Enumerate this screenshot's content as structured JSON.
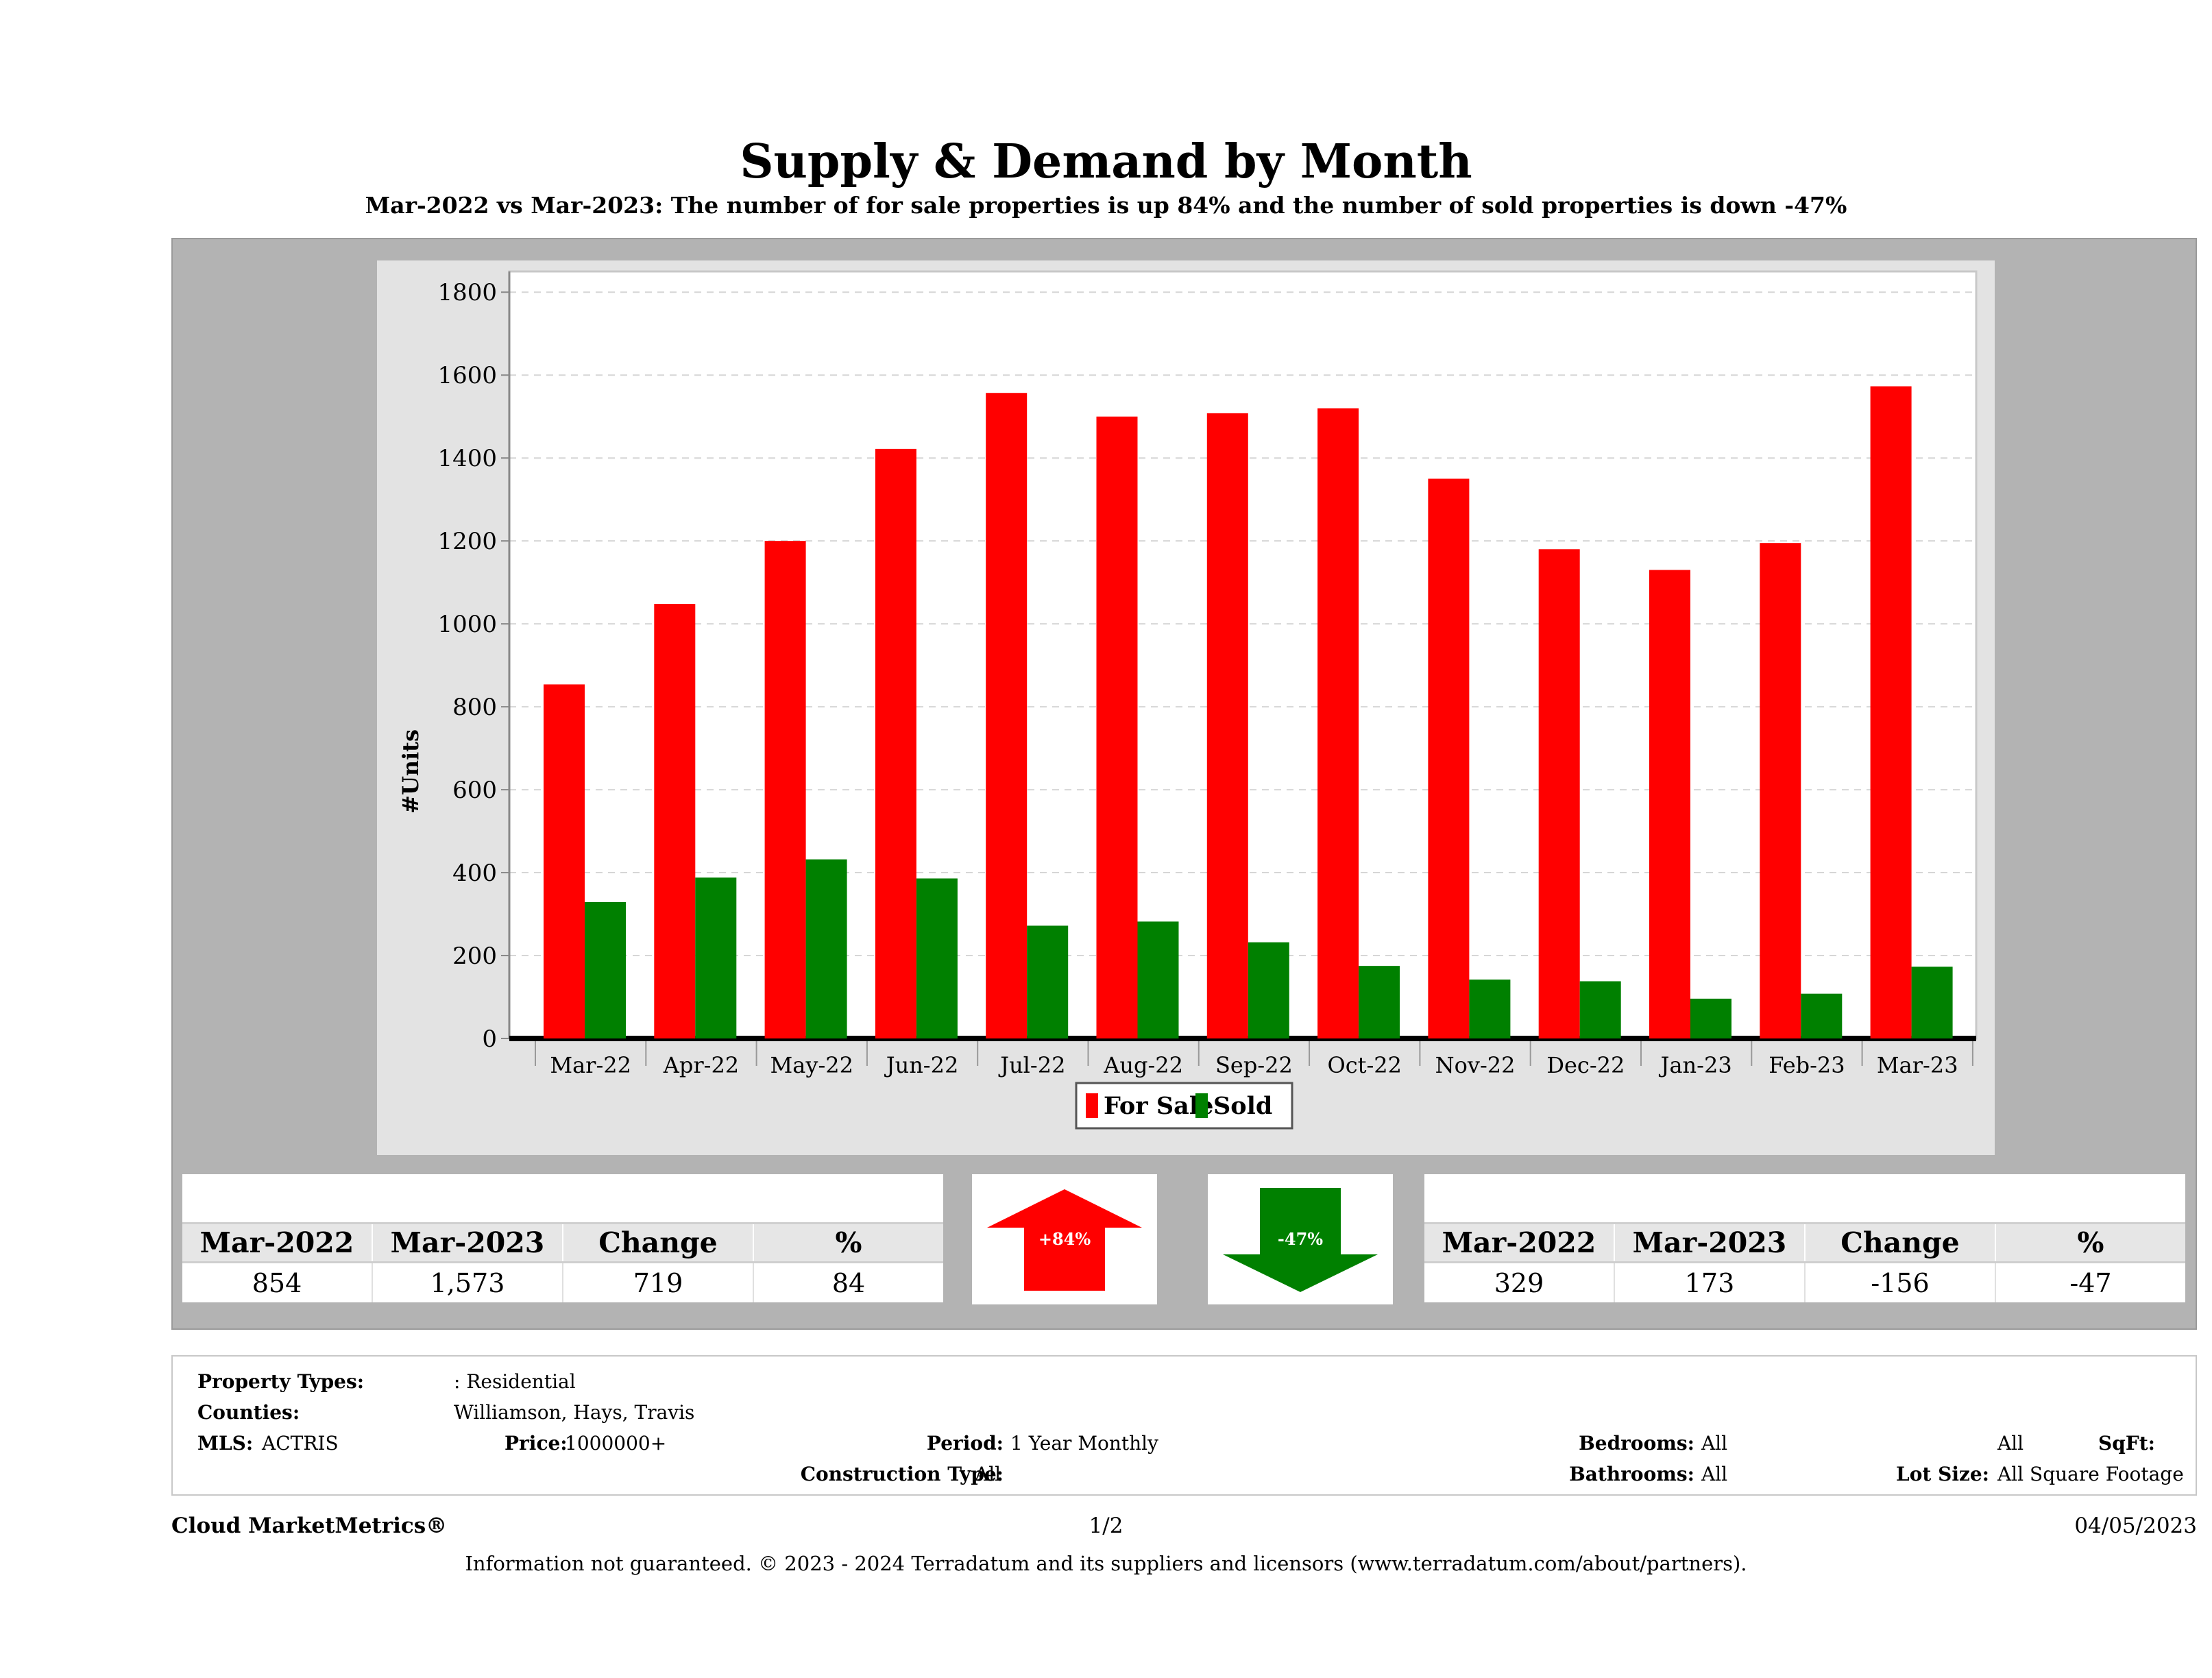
{
  "title": "Supply & Demand by Month",
  "subtitle": "Mar-2022 vs Mar-2023: The number of for sale properties is up 84% and the number of sold properties is down -47%",
  "chart_data": {
    "type": "bar",
    "categories": [
      "Mar-22",
      "Apr-22",
      "May-22",
      "Jun-22",
      "Jul-22",
      "Aug-22",
      "Sep-22",
      "Oct-22",
      "Nov-22",
      "Dec-22",
      "Jan-23",
      "Feb-23",
      "Mar-23"
    ],
    "series": [
      {
        "name": "For Sale",
        "color": "#ff0000",
        "values": [
          854,
          1048,
          1200,
          1422,
          1557,
          1500,
          1508,
          1520,
          1350,
          1180,
          1130,
          1195,
          1573
        ]
      },
      {
        "name": "Sold",
        "color": "#008000",
        "values": [
          329,
          388,
          432,
          386,
          272,
          282,
          232,
          175,
          142,
          138,
          96,
          108,
          173
        ]
      }
    ],
    "ylabel": "#Units",
    "ylim": [
      0,
      1850
    ],
    "yticks": [
      0,
      200,
      400,
      600,
      800,
      1000,
      1200,
      1400,
      1600,
      1800
    ],
    "grid": true,
    "legend_position": "bottom"
  },
  "for_sale_stats": {
    "headers": [
      "Mar-2022",
      "Mar-2023",
      "Change",
      "%"
    ],
    "values": [
      "854",
      "1,573",
      "719",
      "84"
    ]
  },
  "sold_stats": {
    "headers": [
      "Mar-2022",
      "Mar-2023",
      "Change",
      "%"
    ],
    "values": [
      "329",
      "173",
      "-156",
      "-47"
    ]
  },
  "arrows": {
    "up": {
      "label": "+84%",
      "color": "#ff0000"
    },
    "down": {
      "label": "-47%",
      "color": "#008000"
    }
  },
  "criteria": {
    "property_types_label": "Property Types:",
    "property_types_value": ": Residential",
    "counties_label": "Counties:",
    "counties_value": "Williamson, Hays, Travis",
    "mls_label": "MLS:",
    "mls_value": "ACTRIS",
    "price_label": "Price:",
    "price_value": "1000000+",
    "period_label": "Period:",
    "period_value": "1 Year Monthly",
    "construction_label": "Construction Type:",
    "construction_value": "All",
    "bedrooms_label": "Bedrooms:",
    "bedrooms_value": "All",
    "bathrooms_label": "Bathrooms:",
    "bathrooms_value": "All",
    "sqft_label": "SqFt:",
    "sqft_value": "All",
    "lot_label": "Lot Size:",
    "lot_value": "All Square Footage"
  },
  "footer": {
    "brand": "Cloud MarketMetrics®",
    "page": "1/2",
    "date": "04/05/2023",
    "disclaimer": "Information not guaranteed. © 2023 - 2024 Terradatum and its suppliers and licensors (www.terradatum.com/about/partners)."
  }
}
